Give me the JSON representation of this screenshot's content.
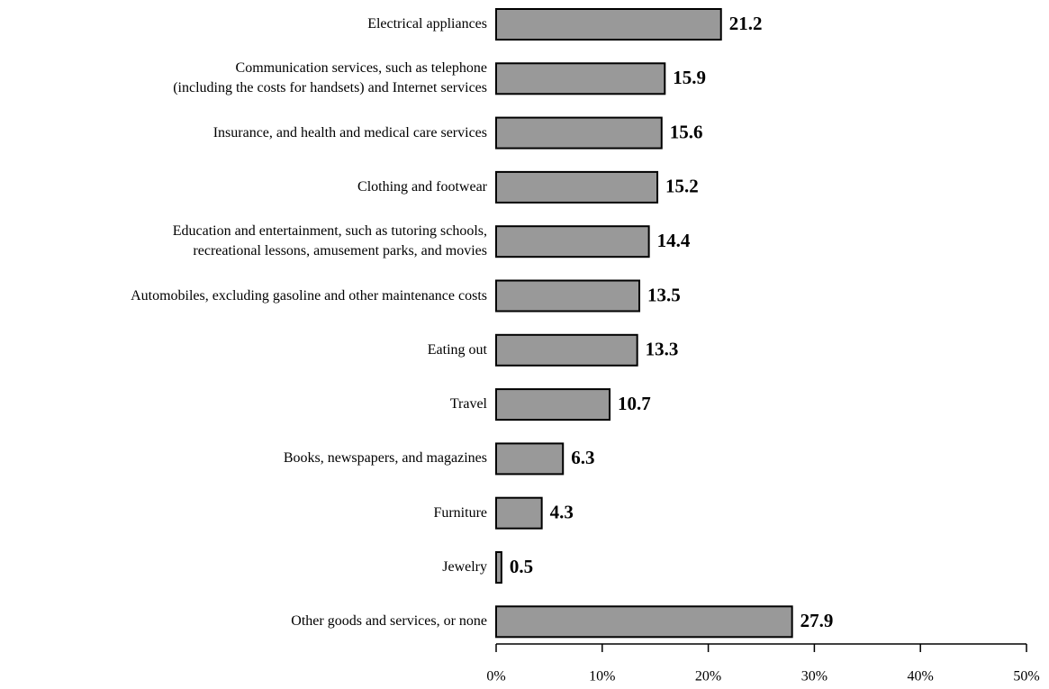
{
  "chart_data": {
    "type": "bar",
    "orientation": "horizontal",
    "categories": [
      "Electrical appliances",
      "Communication services, such as telephone\n(including the costs for handsets) and Internet services",
      "Insurance, and health and medical care services",
      "Clothing and footwear",
      "Education and entertainment, such as tutoring schools,\nrecreational lessons, amusement parks, and movies",
      "Automobiles, excluding gasoline and other maintenance costs",
      "Eating out",
      "Travel",
      "Books, newspapers, and magazines",
      "Furniture",
      "Jewelry",
      "Other goods and services, or none"
    ],
    "values": [
      21.2,
      15.9,
      15.6,
      15.2,
      14.4,
      13.5,
      13.3,
      10.7,
      6.3,
      4.3,
      0.5,
      27.9
    ],
    "color": "#999999",
    "xlim": [
      0,
      50
    ],
    "xticks": [
      {
        "value": 0,
        "label": "0%"
      },
      {
        "value": 10,
        "label": "10%"
      },
      {
        "value": 20,
        "label": "20%"
      },
      {
        "value": 30,
        "label": "30%"
      },
      {
        "value": 40,
        "label": "40%"
      },
      {
        "value": 50,
        "label": "50%"
      }
    ]
  }
}
